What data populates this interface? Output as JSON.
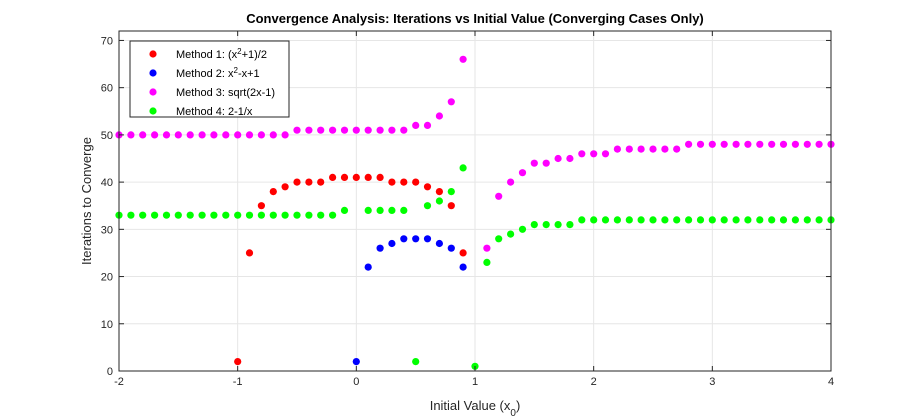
{
  "chart_data": {
    "type": "scatter",
    "title": "Convergence Analysis: Iterations vs Initial Value (Converging Cases Only)",
    "xlabel": "Initial Value (x",
    "xlabel_sub": "0",
    "xlabel_close": ")",
    "ylabel": "Iterations to Converge",
    "xlim": [
      -2,
      4
    ],
    "ylim": [
      0,
      72
    ],
    "xticks": [
      -2,
      -1,
      0,
      1,
      2,
      3,
      4
    ],
    "yticks": [
      0,
      10,
      20,
      30,
      40,
      50,
      60,
      70
    ],
    "grid": true,
    "legend_position": "top-left",
    "series": [
      {
        "name": "Method 1: (x",
        "name_sup": "2",
        "name_rest": "+1)/2",
        "color": "#ff0000",
        "points": [
          [
            -1,
            2
          ],
          [
            -0.9,
            25
          ],
          [
            -0.8,
            35
          ],
          [
            -0.7,
            38
          ],
          [
            -0.6,
            39
          ],
          [
            -0.5,
            40
          ],
          [
            -0.4,
            40
          ],
          [
            -0.3,
            40
          ],
          [
            -0.2,
            41
          ],
          [
            -0.1,
            41
          ],
          [
            0,
            41
          ],
          [
            0.1,
            41
          ],
          [
            0.2,
            41
          ],
          [
            0.3,
            40
          ],
          [
            0.4,
            40
          ],
          [
            0.5,
            40
          ],
          [
            0.6,
            39
          ],
          [
            0.7,
            38
          ],
          [
            0.8,
            35
          ],
          [
            0.9,
            25
          ]
        ]
      },
      {
        "name": "Method 2: x",
        "name_sup": "2",
        "name_rest": "-x+1",
        "color": "#0000ff",
        "points": [
          [
            0,
            2
          ],
          [
            0.1,
            22
          ],
          [
            0.2,
            26
          ],
          [
            0.3,
            27
          ],
          [
            0.4,
            28
          ],
          [
            0.5,
            28
          ],
          [
            0.6,
            28
          ],
          [
            0.7,
            27
          ],
          [
            0.8,
            26
          ],
          [
            0.9,
            22
          ]
        ]
      },
      {
        "name": "Method 3: sqrt(2x-1)",
        "name_sup": "",
        "name_rest": "",
        "color": "#ff00ff",
        "points": [
          [
            -2,
            50
          ],
          [
            -1.9,
            50
          ],
          [
            -1.8,
            50
          ],
          [
            -1.7,
            50
          ],
          [
            -1.6,
            50
          ],
          [
            -1.5,
            50
          ],
          [
            -1.4,
            50
          ],
          [
            -1.3,
            50
          ],
          [
            -1.2,
            50
          ],
          [
            -1.1,
            50
          ],
          [
            -1,
            50
          ],
          [
            -0.9,
            50
          ],
          [
            -0.8,
            50
          ],
          [
            -0.7,
            50
          ],
          [
            -0.6,
            50
          ],
          [
            -0.5,
            51
          ],
          [
            -0.4,
            51
          ],
          [
            -0.3,
            51
          ],
          [
            -0.2,
            51
          ],
          [
            -0.1,
            51
          ],
          [
            0,
            51
          ],
          [
            0.1,
            51
          ],
          [
            0.2,
            51
          ],
          [
            0.3,
            51
          ],
          [
            0.4,
            51
          ],
          [
            0.5,
            52
          ],
          [
            0.6,
            52
          ],
          [
            0.7,
            54
          ],
          [
            0.8,
            57
          ],
          [
            0.9,
            66
          ],
          [
            1.1,
            26
          ],
          [
            1.2,
            37
          ],
          [
            1.3,
            40
          ],
          [
            1.4,
            42
          ],
          [
            1.5,
            44
          ],
          [
            1.6,
            44
          ],
          [
            1.7,
            45
          ],
          [
            1.8,
            45
          ],
          [
            1.9,
            46
          ],
          [
            2,
            46
          ],
          [
            2.1,
            46
          ],
          [
            2.2,
            47
          ],
          [
            2.3,
            47
          ],
          [
            2.4,
            47
          ],
          [
            2.5,
            47
          ],
          [
            2.6,
            47
          ],
          [
            2.7,
            47
          ],
          [
            2.8,
            48
          ],
          [
            2.9,
            48
          ],
          [
            3,
            48
          ],
          [
            3.1,
            48
          ],
          [
            3.2,
            48
          ],
          [
            3.3,
            48
          ],
          [
            3.4,
            48
          ],
          [
            3.5,
            48
          ],
          [
            3.6,
            48
          ],
          [
            3.7,
            48
          ],
          [
            3.8,
            48
          ],
          [
            3.9,
            48
          ],
          [
            4,
            48
          ]
        ]
      },
      {
        "name": "Method 4: 2-1/x",
        "name_sup": "",
        "name_rest": "",
        "color": "#00ff00",
        "points": [
          [
            -2,
            33
          ],
          [
            -1.9,
            33
          ],
          [
            -1.8,
            33
          ],
          [
            -1.7,
            33
          ],
          [
            -1.6,
            33
          ],
          [
            -1.5,
            33
          ],
          [
            -1.4,
            33
          ],
          [
            -1.3,
            33
          ],
          [
            -1.2,
            33
          ],
          [
            -1.1,
            33
          ],
          [
            -1,
            33
          ],
          [
            -0.9,
            33
          ],
          [
            -0.8,
            33
          ],
          [
            -0.7,
            33
          ],
          [
            -0.6,
            33
          ],
          [
            -0.5,
            33
          ],
          [
            -0.4,
            33
          ],
          [
            -0.3,
            33
          ],
          [
            -0.2,
            33
          ],
          [
            -0.1,
            34
          ],
          [
            0.1,
            34
          ],
          [
            0.2,
            34
          ],
          [
            0.3,
            34
          ],
          [
            0.4,
            34
          ],
          [
            0.5,
            2
          ],
          [
            0.6,
            35
          ],
          [
            0.7,
            36
          ],
          [
            0.8,
            38
          ],
          [
            0.9,
            43
          ],
          [
            1,
            1
          ],
          [
            1.1,
            23
          ],
          [
            1.2,
            28
          ],
          [
            1.3,
            29
          ],
          [
            1.4,
            30
          ],
          [
            1.5,
            31
          ],
          [
            1.6,
            31
          ],
          [
            1.7,
            31
          ],
          [
            1.8,
            31
          ],
          [
            1.9,
            32
          ],
          [
            2,
            32
          ],
          [
            2.1,
            32
          ],
          [
            2.2,
            32
          ],
          [
            2.3,
            32
          ],
          [
            2.4,
            32
          ],
          [
            2.5,
            32
          ],
          [
            2.6,
            32
          ],
          [
            2.7,
            32
          ],
          [
            2.8,
            32
          ],
          [
            2.9,
            32
          ],
          [
            3,
            32
          ],
          [
            3.1,
            32
          ],
          [
            3.2,
            32
          ],
          [
            3.3,
            32
          ],
          [
            3.4,
            32
          ],
          [
            3.5,
            32
          ],
          [
            3.6,
            32
          ],
          [
            3.7,
            32
          ],
          [
            3.8,
            32
          ],
          [
            3.9,
            32
          ],
          [
            4,
            32
          ]
        ]
      }
    ]
  }
}
